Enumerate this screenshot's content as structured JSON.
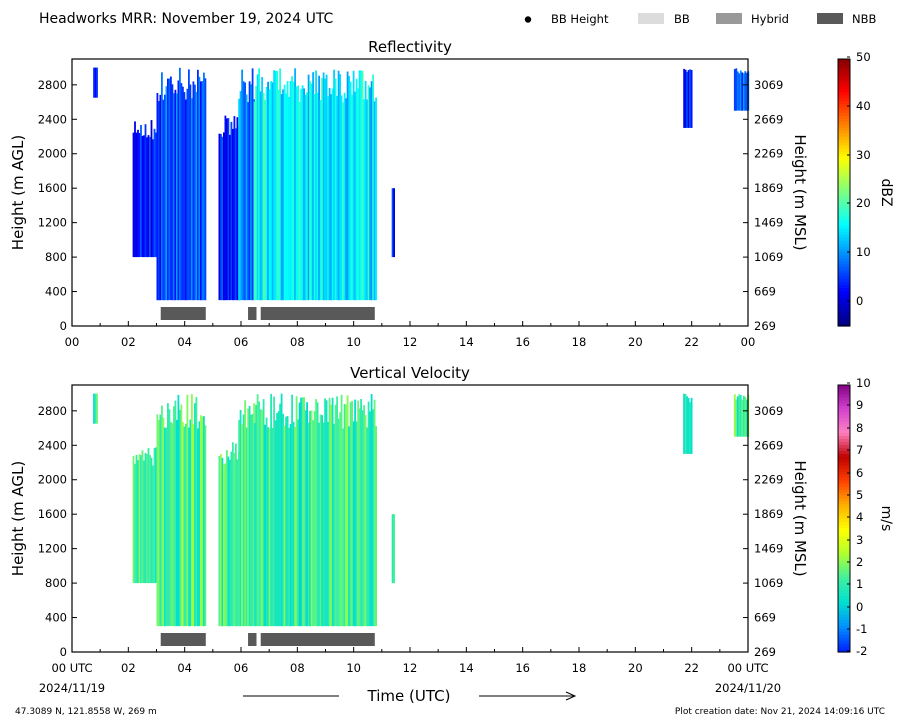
{
  "header": {
    "title": "Headworks MRR:  November 19, 2024 UTC",
    "legend": [
      {
        "label": "BB Height",
        "kind": "dot",
        "color": "#000000"
      },
      {
        "label": "BB",
        "kind": "box",
        "color": "#dcdcdc"
      },
      {
        "label": "Hybrid",
        "kind": "box",
        "color": "#999999"
      },
      {
        "label": "NBB",
        "kind": "box",
        "color": "#595959"
      }
    ]
  },
  "footer": {
    "location": "47.3089 N, 121.8558 W, 269 m",
    "creation": "Plot creation date: Nov 21, 2024 14:09:16 UTC",
    "xaxis_title": "Time (UTC)"
  },
  "icons": {
    "arrow_left": "arrow-left-icon",
    "arrow_right": "arrow-right-icon",
    "legend_dot": "dot-icon"
  },
  "chart_data": [
    {
      "type": "heatmap",
      "title": "Reflectivity",
      "ylabel": "Height (m AGL)",
      "y2label": "Height (m MSL)",
      "x_ticks": [
        "00",
        "02",
        "04",
        "06",
        "08",
        "10",
        "12",
        "14",
        "16",
        "18",
        "20",
        "22",
        "00"
      ],
      "y_ticks": [
        "0",
        "400",
        "800",
        "1200",
        "1600",
        "2000",
        "2400",
        "2800"
      ],
      "y2_ticks": [
        "269",
        "669",
        "1069",
        "1469",
        "1869",
        "2269",
        "2669",
        "3069"
      ],
      "xlim": [
        0,
        24
      ],
      "ylim": [
        0,
        3100
      ],
      "colorbar": {
        "label": "dBZ",
        "range": [
          -5,
          50
        ],
        "ticks": [
          "50",
          "40",
          "30",
          "20",
          "10",
          "0"
        ],
        "colors": [
          "#00007f",
          "#0000ff",
          "#0080ff",
          "#00ffff",
          "#7fff7f",
          "#ffff00",
          "#ff8000",
          "#ff0000",
          "#7f0000"
        ]
      },
      "echo_regions": [
        {
          "start": 0.75,
          "end": 0.9,
          "bottom": 2650,
          "top": 3000,
          "value": 5
        },
        {
          "start": 2.15,
          "end": 3.0,
          "bottom": 800,
          "top": 2400,
          "value": 3
        },
        {
          "start": 3.0,
          "end": 4.75,
          "bottom": 300,
          "top": 3000,
          "value": 6
        },
        {
          "start": 5.2,
          "end": 5.9,
          "bottom": 300,
          "top": 2500,
          "value": 4
        },
        {
          "start": 5.9,
          "end": 6.45,
          "bottom": 300,
          "top": 3000,
          "value": 9
        },
        {
          "start": 6.45,
          "end": 10.8,
          "bottom": 300,
          "top": 3000,
          "value": 15
        },
        {
          "start": 11.35,
          "end": 11.45,
          "bottom": 800,
          "top": 1600,
          "value": 4
        },
        {
          "start": 21.7,
          "end": 22.0,
          "bottom": 2300,
          "top": 3000,
          "value": 2
        },
        {
          "start": 23.5,
          "end": 24.0,
          "bottom": 2500,
          "top": 3000,
          "value": 6
        }
      ],
      "bright_band_periods": [
        {
          "start": 3.15,
          "end": 4.75,
          "kind": "NBB"
        },
        {
          "start": 6.25,
          "end": 6.55,
          "kind": "NBB"
        },
        {
          "start": 6.7,
          "end": 10.75,
          "kind": "NBB"
        }
      ]
    },
    {
      "type": "heatmap",
      "title": "Vertical Velocity",
      "ylabel": "Height (m AGL)",
      "y2label": "Height (m MSL)",
      "x_ticks": [
        "00 UTC",
        "02",
        "04",
        "06",
        "08",
        "10",
        "12",
        "14",
        "16",
        "18",
        "20",
        "22",
        "00 UTC"
      ],
      "x_date_labels": [
        "2024/11/19",
        "2024/11/20"
      ],
      "y_ticks": [
        "0",
        "400",
        "800",
        "1200",
        "1600",
        "2000",
        "2400",
        "2800"
      ],
      "y2_ticks": [
        "269",
        "669",
        "1069",
        "1469",
        "1869",
        "2269",
        "2669",
        "3069"
      ],
      "xlim": [
        0,
        24
      ],
      "ylim": [
        0,
        3100
      ],
      "colorbar": {
        "label": "m/s",
        "range": [
          -2.5,
          10
        ],
        "ticks": [
          "10",
          "9",
          "8",
          "7",
          "6",
          "5",
          "4",
          "3",
          "2",
          "1",
          "0",
          "-1",
          "-2"
        ],
        "colors": [
          "#0022ff",
          "#0090ff",
          "#00e0d0",
          "#40f0a0",
          "#b0ff30",
          "#ffff00",
          "#ffb000",
          "#ff4000",
          "#c00000",
          "#ff80c0",
          "#d040d0",
          "#800080"
        ]
      },
      "echo_regions": [
        {
          "start": 0.75,
          "end": 0.9,
          "bottom": 2650,
          "top": 3000,
          "value": 0.8
        },
        {
          "start": 2.15,
          "end": 3.0,
          "bottom": 800,
          "top": 2400,
          "value": 0.6
        },
        {
          "start": 3.0,
          "end": 4.75,
          "bottom": 300,
          "top": 3000,
          "value": 0.9
        },
        {
          "start": 5.2,
          "end": 5.9,
          "bottom": 300,
          "top": 2500,
          "value": 0.8
        },
        {
          "start": 5.9,
          "end": 6.45,
          "bottom": 300,
          "top": 3000,
          "value": 1.0
        },
        {
          "start": 6.45,
          "end": 10.8,
          "bottom": 300,
          "top": 3000,
          "value": 0.7
        },
        {
          "start": 11.35,
          "end": 11.45,
          "bottom": 800,
          "top": 1600,
          "value": 1.1
        },
        {
          "start": 21.7,
          "end": 22.0,
          "bottom": 2300,
          "top": 3000,
          "value": 0.6
        },
        {
          "start": 23.5,
          "end": 24.0,
          "bottom": 2500,
          "top": 3000,
          "value": 0.8
        }
      ],
      "bright_band_periods": [
        {
          "start": 3.15,
          "end": 4.75,
          "kind": "NBB"
        },
        {
          "start": 6.25,
          "end": 6.55,
          "kind": "NBB"
        },
        {
          "start": 6.7,
          "end": 10.75,
          "kind": "NBB"
        }
      ]
    }
  ]
}
